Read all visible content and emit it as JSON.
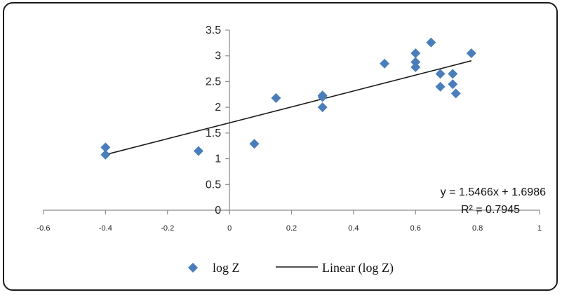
{
  "chart_data": {
    "type": "scatter",
    "x_ticks": [
      "-0.6",
      "-0.4",
      "-0.2",
      "0",
      "0.2",
      "0.4",
      "0.6",
      "0.8",
      "1"
    ],
    "y_ticks": [
      "0",
      "0.5",
      "1",
      "1.5",
      "2",
      "2.5",
      "3",
      "3.5"
    ],
    "xlim": [
      -0.6,
      1.0
    ],
    "ylim": [
      0,
      3.5
    ],
    "grid": false,
    "legend_position": "bottom",
    "series": [
      {
        "name": "log Z",
        "kind": "markers",
        "marker": "diamond",
        "color": "#4a7ebb",
        "points": [
          {
            "x": -0.4,
            "y": 1.22
          },
          {
            "x": -0.4,
            "y": 1.08
          },
          {
            "x": -0.1,
            "y": 1.15
          },
          {
            "x": 0.08,
            "y": 1.29
          },
          {
            "x": 0.15,
            "y": 2.18
          },
          {
            "x": 0.3,
            "y": 2.23
          },
          {
            "x": 0.3,
            "y": 2.2
          },
          {
            "x": 0.3,
            "y": 2.0
          },
          {
            "x": 0.5,
            "y": 2.85
          },
          {
            "x": 0.6,
            "y": 3.05
          },
          {
            "x": 0.6,
            "y": 2.88
          },
          {
            "x": 0.6,
            "y": 2.78
          },
          {
            "x": 0.65,
            "y": 3.26
          },
          {
            "x": 0.68,
            "y": 2.65
          },
          {
            "x": 0.68,
            "y": 2.4
          },
          {
            "x": 0.72,
            "y": 2.65
          },
          {
            "x": 0.72,
            "y": 2.45
          },
          {
            "x": 0.73,
            "y": 2.27
          },
          {
            "x": 0.78,
            "y": 3.05
          }
        ]
      },
      {
        "name": "Linear (log Z)",
        "kind": "trendline",
        "color": "#1a1a1a",
        "slope": 1.5466,
        "intercept": 1.6986,
        "x_range": [
          -0.4,
          0.78
        ]
      }
    ],
    "annotations": {
      "equation": "y = 1.5466x + 1.6986",
      "r_squared": "R² = 0.7945"
    },
    "legend": {
      "items": [
        "log Z",
        "Linear (log Z)"
      ]
    }
  }
}
